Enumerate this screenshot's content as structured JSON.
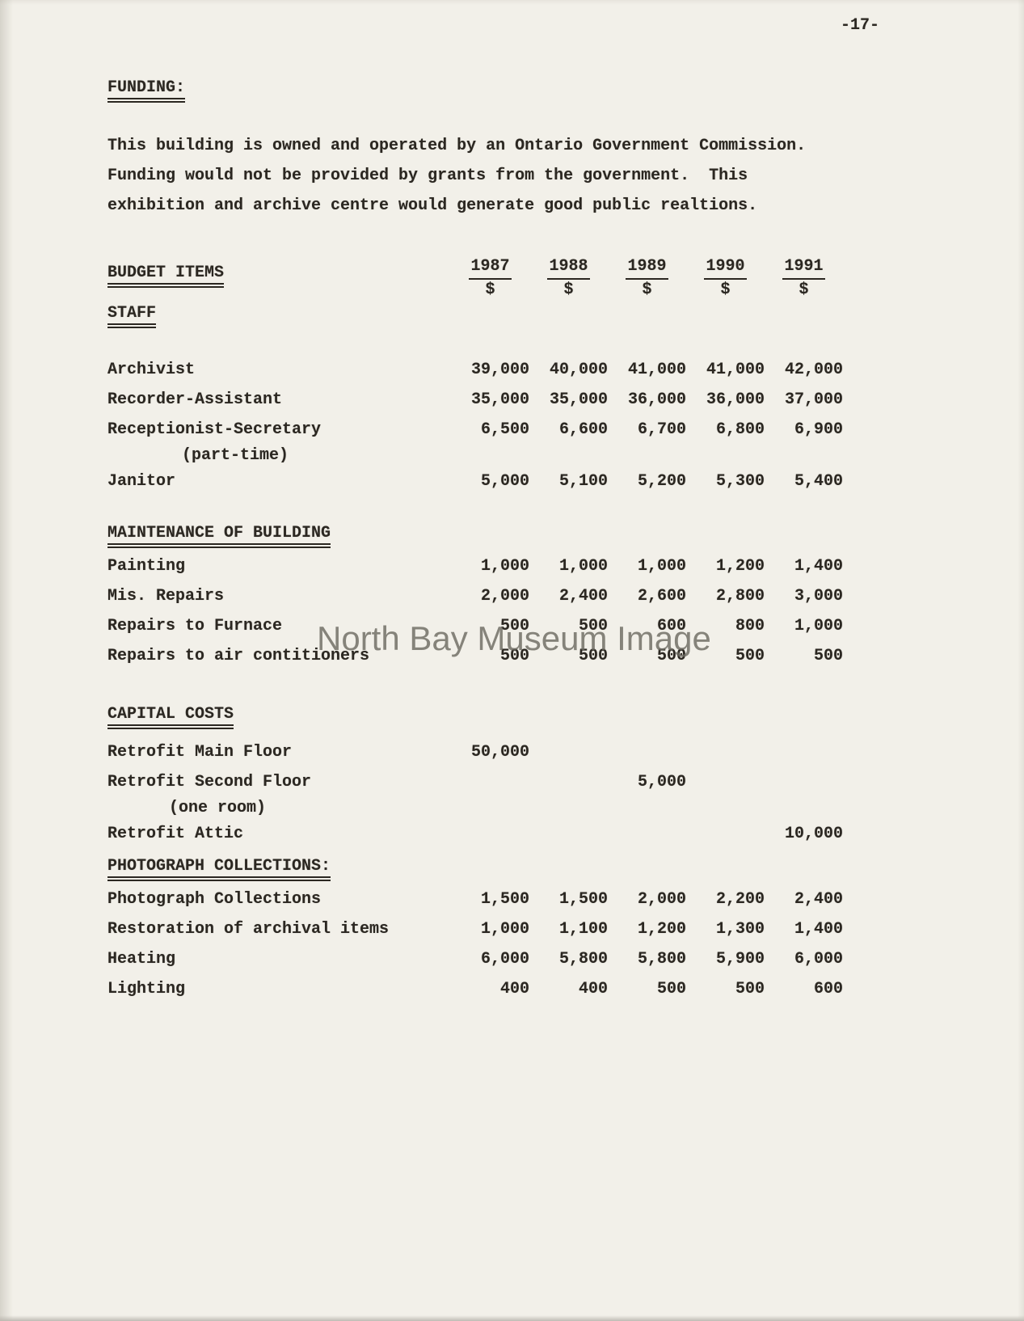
{
  "page": {
    "page_number": "-17-",
    "watermark": "North Bay Museum Image"
  },
  "funding": {
    "heading": "FUNDING:",
    "paragraph_lines": [
      "This building is owned and operated by an Ontario Government Commission.",
      "Funding would not be provided by grants from the government.  This",
      "exhibition and archive centre would generate good public realtions."
    ]
  },
  "budget": {
    "items_label": "BUDGET ITEMS",
    "currency_symbol": "$",
    "years": [
      "1987",
      "1988",
      "1989",
      "1990",
      "1991"
    ],
    "sections": [
      {
        "heading": "STAFF",
        "rows": [
          {
            "label": "Archivist",
            "values": [
              "39,000",
              "40,000",
              "41,000",
              "41,000",
              "42,000"
            ]
          },
          {
            "label": "Recorder-Assistant",
            "values": [
              "35,000",
              "35,000",
              "36,000",
              "36,000",
              "37,000"
            ]
          },
          {
            "label": "Receptionist-Secretary",
            "sublabel": "(part-time)",
            "values": [
              "6,500",
              "6,600",
              "6,700",
              "6,800",
              "6,900"
            ]
          },
          {
            "label": "Janitor",
            "values": [
              "5,000",
              "5,100",
              "5,200",
              "5,300",
              "5,400"
            ]
          }
        ]
      },
      {
        "heading": "MAINTENANCE OF BUILDING",
        "rows": [
          {
            "label": "Painting",
            "values": [
              "1,000",
              "1,000",
              "1,000",
              "1,200",
              "1,400"
            ]
          },
          {
            "label": "Mis. Repairs",
            "values": [
              "2,000",
              "2,400",
              "2,600",
              "2,800",
              "3,000"
            ]
          },
          {
            "label": "Repairs to Furnace",
            "values": [
              "500",
              "500",
              "600",
              "800",
              "1,000"
            ]
          },
          {
            "label": "Repairs to air contitioners",
            "values": [
              "500",
              "500",
              "500",
              "500",
              "500"
            ]
          }
        ]
      },
      {
        "heading": "CAPITAL COSTS",
        "rows": [
          {
            "label": "Retrofit Main Floor",
            "values": [
              "50,000",
              "",
              "",
              "",
              ""
            ]
          },
          {
            "label": "Retrofit Second Floor",
            "sublabel": "(one room)",
            "values": [
              "",
              "",
              "5,000",
              "",
              ""
            ]
          },
          {
            "label": "Retrofit Attic",
            "values": [
              "",
              "",
              "",
              "",
              "10,000"
            ]
          }
        ]
      },
      {
        "heading": "PHOTOGRAPH COLLECTIONS:",
        "rows": [
          {
            "label": "Photograph Collections",
            "values": [
              "1,500",
              "1,500",
              "2,000",
              "2,200",
              "2,400"
            ]
          },
          {
            "label": "Restoration of archival items",
            "values": [
              "1,000",
              "1,100",
              "1,200",
              "1,300",
              "1,400"
            ]
          },
          {
            "label": "Heating",
            "values": [
              "6,000",
              "5,800",
              "5,800",
              "5,900",
              "6,000"
            ]
          },
          {
            "label": "Lighting",
            "values": [
              "400",
              "400",
              "500",
              "500",
              "600"
            ]
          }
        ]
      }
    ]
  }
}
